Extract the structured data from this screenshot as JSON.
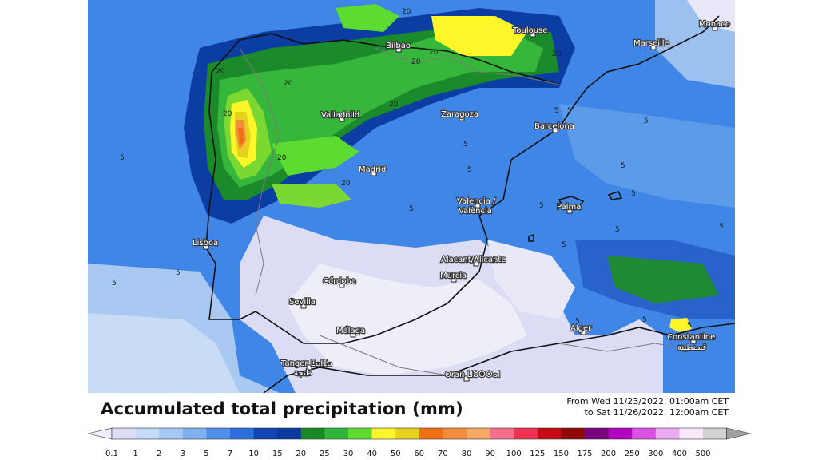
{
  "title": "Accumulated total precipitation (mm)",
  "period": {
    "from": "From Wed 11/23/2022, 01:00am CET",
    "to": "to Sat 11/26/2022, 12:00am CET"
  },
  "cities": [
    {
      "name": "Bilbao"
    },
    {
      "name": "Toulouse"
    },
    {
      "name": "Marseille"
    },
    {
      "name": "Monaco"
    },
    {
      "name": "Valladolid"
    },
    {
      "name": "Zaragoza"
    },
    {
      "name": "Barcelona"
    },
    {
      "name": "Madrid"
    },
    {
      "name": "Valencia /"
    },
    {
      "name": "València"
    },
    {
      "name": "Palma"
    },
    {
      "name": "Lisboa"
    },
    {
      "name": "Alacant/Alicante"
    },
    {
      "name": "Murcia"
    },
    {
      "name": "Córdoba"
    },
    {
      "name": "Sevilla"
    },
    {
      "name": "Málaga"
    },
    {
      "name": "Alger"
    },
    {
      "name": "Constantine"
    },
    {
      "name": "قسنطينة"
    },
    {
      "name": "Tanger ⵟⴰⵏⵊⴰ"
    },
    {
      "name": "طنجة"
    },
    {
      "name": "Oran ⵡⴻⵀⵔⴰⵏ"
    }
  ],
  "contour_labels": [
    "20",
    "20",
    "20",
    "20",
    "20",
    "20",
    "20",
    "20",
    "20",
    "20",
    "5",
    "5",
    "5",
    "5",
    "5",
    "5",
    "5",
    "5",
    "5",
    "5",
    "5",
    "5",
    "5",
    "5",
    "5",
    "5",
    "5",
    "5"
  ],
  "legend": {
    "ticks": [
      "0.1",
      "1",
      "2",
      "3",
      "5",
      "7",
      "10",
      "15",
      "20",
      "25",
      "30",
      "40",
      "50",
      "60",
      "70",
      "80",
      "90",
      "100",
      "125",
      "150",
      "175",
      "200",
      "250",
      "300",
      "400",
      "500"
    ],
    "colors": [
      "#dcdcf5",
      "#c4dcf8",
      "#a5c8f4",
      "#7fb0f0",
      "#5090ea",
      "#2a70dc",
      "#1244b4",
      "#0a3aa0",
      "#178a26",
      "#30b43a",
      "#5cdc30",
      "#fff62a",
      "#e6d21e",
      "#f06e14",
      "#f58c3c",
      "#f7a862",
      "#f76e8c",
      "#f03250",
      "#c80a14",
      "#900808",
      "#7a007e",
      "#b400c0",
      "#dc50e6",
      "#ecaaf2",
      "#f8e8fa",
      "#d2d2d2"
    ],
    "under_color": "#eeeef8",
    "over_color": "#a0a0a0"
  }
}
